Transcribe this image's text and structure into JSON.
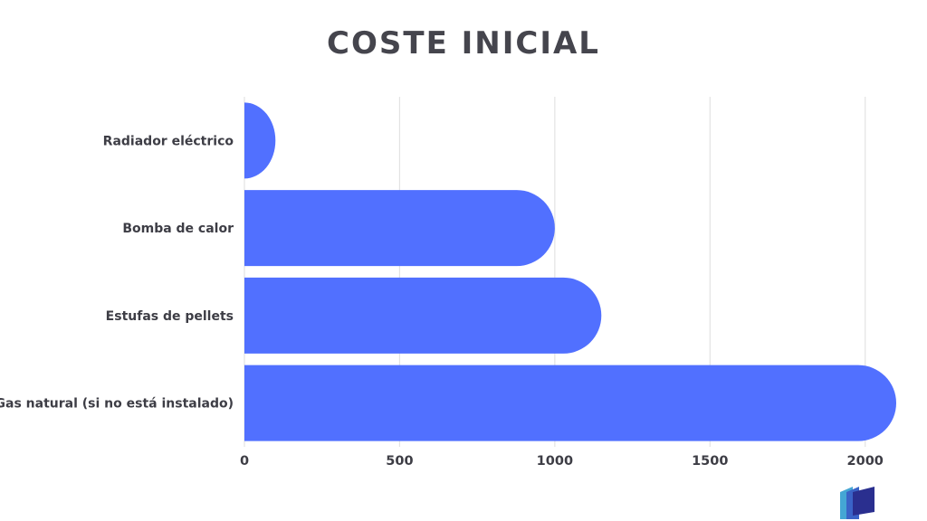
{
  "chart_data": {
    "type": "bar",
    "orientation": "horizontal",
    "title": "COSTE INICIAL",
    "categories": [
      "Radiador eléctrico",
      "Bomba de calor",
      "Estufas de pellets",
      "Gas natural (si no está instalado)"
    ],
    "values": [
      100,
      1000,
      1150,
      2100
    ],
    "xlim": [
      0,
      2100
    ],
    "xticks": [
      0,
      500,
      1000,
      1500,
      2000
    ],
    "tick_labels": [
      "0",
      "500",
      "1000",
      "1500",
      "2000"
    ],
    "grid": "vertical",
    "bar_color": "#5170ff",
    "grid_color": "#e3e3e3",
    "text_color": "#3d3d45",
    "title_color": "#45454d"
  },
  "logo": {
    "icon": "layered-building-icon",
    "colors": [
      "#2a2f8f",
      "#3a63c7",
      "#44a6d4"
    ]
  }
}
